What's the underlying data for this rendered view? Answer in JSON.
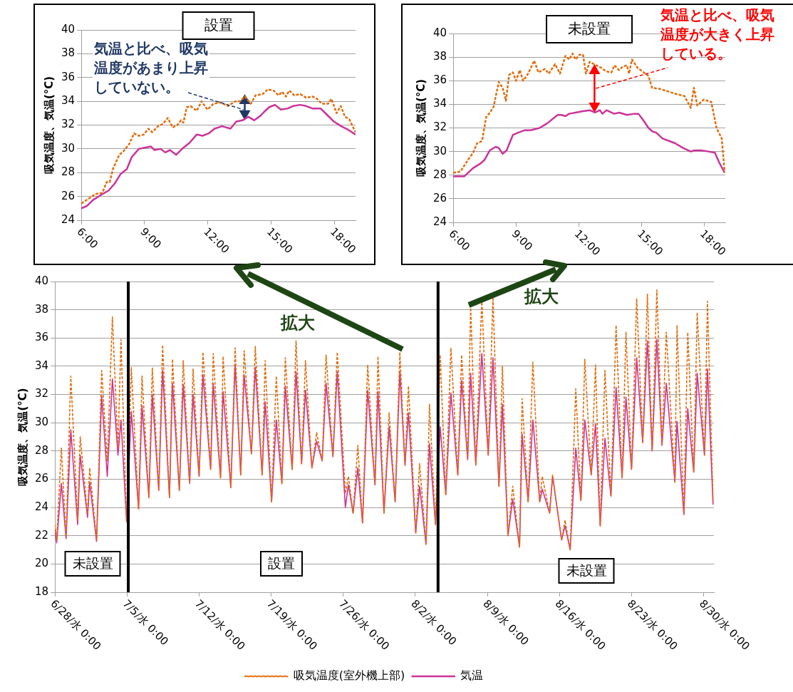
{
  "chart_data": [
    {
      "type": "line",
      "title": "設置",
      "ylabel": "吸気温度、気温(°C)",
      "annotations": [
        "気温と比べ、吸気温度があまり上昇していない。"
      ],
      "xlim": [
        6,
        19
      ],
      "xticks": [
        {
          "value": 6,
          "label": "6:00"
        },
        {
          "value": 9,
          "label": "9:00"
        },
        {
          "value": 12,
          "label": "12:00"
        },
        {
          "value": 15,
          "label": "15:00"
        },
        {
          "value": 18,
          "label": "18:00"
        }
      ],
      "ylim": [
        24,
        40
      ],
      "yticks": [
        24,
        26,
        28,
        30,
        32,
        34,
        36,
        38,
        40
      ],
      "grid": "y",
      "marker": "none",
      "legend": false,
      "series": [
        {
          "color": "#e46c0a",
          "line_style": "dashed",
          "x": [
            6.0,
            6.67,
            7.0,
            7.2,
            7.35,
            7.5,
            7.8,
            8.0,
            8.27,
            8.5,
            8.73,
            8.96,
            9.18,
            9.36,
            9.64,
            9.87,
            10.1,
            10.33,
            10.55,
            10.73,
            10.84,
            11.0,
            11.18,
            11.47,
            11.7,
            11.98,
            12.27,
            12.6,
            12.95,
            13.3,
            13.52,
            13.75,
            14.04,
            14.26,
            14.6,
            14.84,
            15.12,
            15.35,
            15.52,
            15.7,
            15.86,
            16.1,
            16.38,
            16.66,
            16.95,
            17.18,
            17.4,
            17.7,
            17.86,
            18.1,
            18.3,
            18.5,
            18.7,
            19.0
          ],
          "values": [
            25.4,
            26.2,
            26.3,
            27.2,
            27.2,
            28.3,
            29.5,
            29.8,
            30.4,
            31.3,
            31.1,
            31.2,
            31.7,
            31.4,
            31.9,
            32.1,
            32.6,
            31.8,
            32.0,
            32.4,
            32.2,
            33.5,
            33.6,
            33.2,
            34.0,
            33.3,
            33.8,
            33.9,
            33.6,
            34.0,
            34.0,
            34.4,
            33.8,
            34.5,
            34.6,
            35.0,
            34.9,
            34.5,
            34.8,
            34.4,
            34.9,
            34.5,
            34.6,
            34.3,
            34.4,
            34.2,
            33.8,
            33.8,
            34.2,
            33.0,
            33.6,
            32.7,
            32.5,
            31.4
          ]
        },
        {
          "color": "#cc3399",
          "line_style": "solid",
          "x": [
            6.0,
            6.27,
            6.56,
            7.0,
            7.3,
            7.59,
            7.87,
            8.16,
            8.39,
            8.73,
            9.01,
            9.3,
            9.47,
            9.76,
            9.98,
            10.2,
            10.5,
            10.84,
            11.13,
            11.47,
            11.75,
            12.04,
            12.32,
            12.67,
            13.07,
            13.35,
            13.64,
            13.92,
            14.2,
            14.5,
            14.72,
            14.9,
            15.18,
            15.46,
            15.8,
            16.03,
            16.38,
            16.66,
            16.95,
            17.34,
            17.63,
            17.97,
            18.32,
            18.66,
            19.0
          ],
          "values": [
            25.0,
            25.2,
            25.7,
            26.2,
            26.5,
            27.1,
            27.9,
            28.3,
            29.3,
            30.0,
            30.1,
            30.2,
            29.9,
            30.0,
            29.7,
            29.9,
            29.5,
            30.1,
            30.5,
            31.2,
            31.1,
            31.3,
            31.7,
            31.9,
            31.7,
            32.3,
            32.4,
            32.7,
            32.4,
            32.8,
            33.2,
            33.5,
            33.7,
            33.3,
            33.4,
            33.6,
            33.7,
            33.6,
            33.4,
            33.4,
            32.9,
            32.3,
            31.9,
            31.6,
            31.2
          ]
        }
      ]
    },
    {
      "type": "line",
      "title": "未設置",
      "ylabel": "吸気温度、気温(°C)",
      "annotations": [
        "気温と比べ、吸気温度が大きく上昇している。"
      ],
      "xlim": [
        6,
        19
      ],
      "xticks": [
        {
          "value": 6,
          "label": "6:00"
        },
        {
          "value": 9,
          "label": "9:00"
        },
        {
          "value": 12,
          "label": "12:00"
        },
        {
          "value": 15,
          "label": "15:00"
        },
        {
          "value": 18,
          "label": "18:00"
        }
      ],
      "ylim": [
        24,
        40
      ],
      "yticks": [
        24,
        26,
        28,
        30,
        32,
        34,
        36,
        38,
        40
      ],
      "grid": "y",
      "marker": "none",
      "legend": false,
      "series": [
        {
          "color": "#e46c0a",
          "line_style": "dashed",
          "x": [
            6.0,
            6.34,
            6.71,
            6.95,
            7.14,
            7.38,
            7.57,
            7.75,
            7.93,
            8.18,
            8.36,
            8.52,
            8.67,
            8.85,
            9.0,
            9.18,
            9.34,
            9.58,
            9.87,
            10.07,
            10.38,
            10.56,
            10.87,
            11.1,
            11.36,
            11.54,
            11.7,
            11.85,
            12.03,
            12.2,
            12.34,
            12.52,
            12.83,
            13.07,
            13.3,
            13.56,
            13.7,
            13.92,
            14.1,
            14.3,
            14.4,
            14.54,
            14.8,
            15.03,
            15.33,
            15.5,
            15.88,
            16.25,
            16.6,
            17.05,
            17.35,
            17.5,
            17.66,
            17.97,
            18.33,
            18.58,
            18.83,
            18.97
          ],
          "values": [
            28.2,
            28.3,
            29.3,
            29.9,
            30.7,
            30.9,
            32.9,
            33.3,
            33.8,
            35.9,
            35.4,
            34.3,
            36.5,
            36.7,
            36.0,
            36.9,
            36.0,
            36.6,
            37.7,
            36.7,
            37.0,
            36.6,
            37.4,
            36.6,
            38.1,
            37.8,
            38.3,
            37.8,
            38.2,
            38.2,
            36.6,
            37.6,
            37.3,
            37.1,
            36.8,
            36.7,
            37.3,
            36.9,
            37.2,
            37.3,
            36.6,
            37.8,
            37.1,
            36.8,
            36.4,
            35.4,
            35.3,
            35.1,
            34.9,
            34.7,
            33.7,
            35.4,
            33.9,
            34.4,
            34.2,
            32.0,
            31.1,
            28.2
          ]
        },
        {
          "color": "#cc3399",
          "line_style": "solid",
          "x": [
            6.0,
            6.53,
            6.95,
            7.32,
            7.5,
            7.75,
            8.03,
            8.18,
            8.36,
            8.55,
            8.85,
            9.1,
            9.4,
            9.7,
            10.13,
            10.5,
            10.99,
            11.17,
            11.36,
            11.54,
            11.85,
            12.15,
            12.52,
            12.77,
            13.01,
            13.13,
            13.32,
            13.69,
            13.93,
            14.3,
            14.66,
            14.85,
            15.1,
            15.33,
            15.52,
            15.7,
            16.0,
            16.31,
            16.6,
            16.98,
            17.35,
            17.53,
            17.84,
            18.2,
            18.5,
            18.7,
            18.97
          ],
          "values": [
            27.9,
            27.9,
            28.6,
            29.0,
            29.3,
            30.1,
            30.4,
            30.3,
            29.8,
            30.1,
            31.4,
            31.6,
            31.8,
            31.8,
            32.0,
            32.4,
            33.1,
            33.1,
            33.0,
            33.2,
            33.3,
            33.4,
            33.5,
            33.3,
            33.5,
            33.2,
            33.5,
            33.2,
            33.3,
            33.1,
            33.2,
            33.2,
            32.6,
            32.0,
            31.7,
            31.6,
            31.1,
            30.9,
            30.7,
            30.3,
            30.0,
            30.1,
            30.1,
            30.0,
            29.9,
            29.1,
            28.2
          ]
        }
      ]
    },
    {
      "type": "line",
      "ylabel": "吸気温度、気温(°C)",
      "annotations": [
        "未設置",
        "設置",
        "未設置",
        "拡大",
        "拡大"
      ],
      "xlim": [
        "--06-28T00:00",
        "--08-31T00:00"
      ],
      "xticks": [
        {
          "value": "--06-28T00:00",
          "label": "6/28/水 0:00"
        },
        {
          "value": "--07-05T00:00",
          "label": "7/5/水 0:00"
        },
        {
          "value": "--07-12T00:00",
          "label": "7/12/水 0:00"
        },
        {
          "value": "--07-19T00:00",
          "label": "7/19/水 0:00"
        },
        {
          "value": "--07-26T00:00",
          "label": "7/26/水 0:00"
        },
        {
          "value": "--08-02T00:00",
          "label": "8/2/水 0:00"
        },
        {
          "value": "--08-09T00:00",
          "label": "8/9/水 0:00"
        },
        {
          "value": "--08-16T00:00",
          "label": "8/16/水 0:00"
        },
        {
          "value": "--08-23T00:00",
          "label": "8/23/水 0:00"
        },
        {
          "value": "--08-30T00:00",
          "label": "8/30/水 0:00"
        }
      ],
      "ylim": [
        18,
        40
      ],
      "yticks": [
        18,
        20,
        22,
        24,
        26,
        28,
        30,
        32,
        34,
        36,
        38,
        40
      ],
      "grid": "y",
      "marker": "none",
      "legend": "bottom",
      "ref_lines": [
        {
          "axis": "x",
          "value": "--07-05T03:00",
          "color": "#000000"
        },
        {
          "axis": "x",
          "value": "--08-04T05:00",
          "color": "#000000"
        }
      ],
      "x": [
        "--06-28T00:00",
        "--06-28T04:00",
        "--06-28T15:00",
        "--06-29T02:00",
        "--06-29T13:00",
        "--06-30T05:00",
        "--06-30T11:00",
        "--07-01T04:00",
        "--07-01T09:00",
        "--07-02T01:00",
        "--07-02T13:00",
        "--07-03T02:00",
        "--07-03T14:00",
        "--07-04T03:00",
        "--07-04T10:00",
        "--07-04T23:00",
        "--07-05T10:00",
        "--07-06T03:00",
        "--07-06T11:00",
        "--07-07T03:00",
        "--07-07T11:00",
        "--07-08T02:00",
        "--07-08T11:00",
        "--07-09T03:00",
        "--07-09T10:00",
        "--07-10T02:00",
        "--07-10T11:00",
        "--07-11T02:00",
        "--07-11T10:00",
        "--07-12T00:00",
        "--07-12T09:00",
        "--07-13T03:00",
        "--07-13T09:00",
        "--07-14T02:00",
        "--07-14T08:00",
        "--07-15T02:00",
        "--07-15T12:00",
        "--07-16T01:00",
        "--07-16T09:00",
        "--07-17T02:00",
        "--07-17T11:00",
        "--07-18T03:00",
        "--07-18T10:00",
        "--07-19T01:00",
        "--07-19T12:00",
        "--07-20T01:00",
        "--07-20T09:00",
        "--07-21T01:00",
        "--07-21T10:00",
        "--07-21T23:00",
        "--07-22T08:00",
        "--07-22T23:00",
        "--07-23T10:00",
        "--07-23T23:00",
        "--07-24T08:00",
        "--07-25T00:00",
        "--07-25T10:00",
        "--07-26T05:00",
        "--07-26T12:00",
        "--07-26T23:00",
        "--07-27T10:00",
        "--07-27T21:00",
        "--07-28T09:00",
        "--07-29T02:00",
        "--07-29T09:00",
        "--07-29T23:00",
        "--07-30T11:00",
        "--07-31T01:00",
        "--07-31T12:00",
        "--08-01T00:00",
        "--08-01T08:00",
        "--08-02T01:00",
        "--08-02T10:00",
        "--08-03T01:00",
        "--08-03T09:00",
        "--08-03T23:00",
        "--08-04T10:00",
        "--08-04T23:00",
        "--08-05T11:00",
        "--08-06T03:00",
        "--08-06T12:00",
        "--08-07T02:00",
        "--08-07T09:00",
        "--08-07T21:00",
        "--08-08T11:00",
        "--08-09T02:00",
        "--08-09T13:00",
        "--08-10T03:00",
        "--08-10T11:00",
        "--08-11T00:00",
        "--08-11T11:00",
        "--08-12T03:00",
        "--08-12T09:00",
        "--08-12T23:00",
        "--08-13T10:00",
        "--08-14T02:00",
        "--08-14T08:00",
        "--08-15T01:00",
        "--08-15T08:00",
        "--08-16T05:00",
        "--08-16T13:00",
        "--08-17T01:00",
        "--08-17T14:00",
        "--08-18T02:00",
        "--08-18T11:00",
        "--08-19T02:00",
        "--08-19T12:00",
        "--08-19T23:00",
        "--08-20T10:00",
        "--08-21T00:00",
        "--08-21T12:00",
        "--08-22T02:00",
        "--08-22T11:00",
        "--08-23T00:00",
        "--08-23T12:00",
        "--08-24T02:00",
        "--08-24T13:00",
        "--08-25T00:00",
        "--08-25T11:00",
        "--08-25T23:00",
        "--08-26T09:00",
        "--08-27T05:00",
        "--08-27T10:00",
        "--08-28T02:00",
        "--08-28T11:00",
        "--08-29T01:00",
        "--08-29T09:00",
        "--08-30T02:00",
        "--08-30T09:00",
        "--08-30T22:00"
      ],
      "series": [
        {
          "name": "吸気温度(室外機上部)",
          "color": "#e46c0a",
          "line_style": "dashed",
          "values": [
            22.8,
            21.7,
            28.2,
            21.8,
            33.3,
            23.1,
            29.0,
            23.5,
            26.8,
            21.7,
            33.7,
            27.3,
            37.5,
            28.2,
            35.9,
            23.0,
            33.9,
            23.9,
            33.3,
            24.7,
            33.9,
            25.2,
            35.5,
            24.7,
            34.5,
            25.2,
            34.4,
            25.7,
            33.8,
            26.2,
            35.0,
            26.7,
            34.9,
            26.1,
            34.7,
            25.4,
            35.3,
            26.3,
            35.1,
            27.8,
            35.4,
            26.3,
            34.4,
            24.4,
            33.3,
            25.7,
            34.6,
            26.7,
            35.8,
            27.1,
            34.4,
            26.8,
            29.3,
            27.3,
            34.8,
            27.6,
            35.0,
            25.0,
            26.2,
            23.6,
            28.4,
            22.9,
            34.1,
            25.6,
            34.7,
            23.6,
            30.7,
            24.4,
            35.0,
            27.0,
            32.6,
            22.2,
            27.1,
            21.4,
            31.3,
            22.8,
            34.8,
            24.9,
            35.3,
            26.3,
            34.8,
            27.4,
            38.3,
            27.0,
            38.7,
            27.7,
            38.9,
            25.5,
            34.0,
            22.0,
            25.5,
            21.2,
            31.7,
            24.4,
            34.3,
            24.4,
            26.2,
            23.6,
            26.3,
            21.7,
            23.1,
            21.0,
            32.4,
            24.5,
            34.5,
            26.3,
            34.1,
            22.7,
            33.7,
            24.8,
            36.9,
            26.1,
            36.4,
            26.7,
            38.8,
            28.6,
            39.1,
            28.0,
            39.4,
            28.4,
            36.4,
            25.8,
            36.9,
            23.5,
            36.4,
            26.5,
            37.8,
            27.7,
            38.6,
            24.4
          ]
        },
        {
          "name": "気温",
          "color": "#cc3399",
          "line_style": "solid",
          "values": [
            22.5,
            21.5,
            25.7,
            21.8,
            29.5,
            22.8,
            27.7,
            23.3,
            25.8,
            21.6,
            31.9,
            26.2,
            33.1,
            27.7,
            30.2,
            23.0,
            30.8,
            23.9,
            31.2,
            24.7,
            32.0,
            25.2,
            33.7,
            24.7,
            32.8,
            25.2,
            32.7,
            25.7,
            32.0,
            26.2,
            33.4,
            26.7,
            32.8,
            26.1,
            32.2,
            25.4,
            34.1,
            26.3,
            33.4,
            27.8,
            33.9,
            26.3,
            31.5,
            24.4,
            30.2,
            25.7,
            32.6,
            26.7,
            33.6,
            27.1,
            32.3,
            26.8,
            28.7,
            27.3,
            32.8,
            27.6,
            33.6,
            24.0,
            25.6,
            23.6,
            26.8,
            22.9,
            32.3,
            25.6,
            32.2,
            23.6,
            29.7,
            24.4,
            33.6,
            27.0,
            30.7,
            22.2,
            25.5,
            21.4,
            28.5,
            22.8,
            29.7,
            24.9,
            32.1,
            26.3,
            33.0,
            27.4,
            33.5,
            27.0,
            34.9,
            27.7,
            34.6,
            25.5,
            31.3,
            22.0,
            24.6,
            21.2,
            29.2,
            24.4,
            30.2,
            24.4,
            25.3,
            23.6,
            26.2,
            21.7,
            22.7,
            21.0,
            28.2,
            24.5,
            30.2,
            26.3,
            29.9,
            22.7,
            28.9,
            24.8,
            32.5,
            26.1,
            31.8,
            26.7,
            34.6,
            28.6,
            35.8,
            28.0,
            35.9,
            28.4,
            32.8,
            25.8,
            30.1,
            23.5,
            31.0,
            26.5,
            33.5,
            27.7,
            33.8,
            24.2
          ]
        }
      ]
    }
  ]
}
